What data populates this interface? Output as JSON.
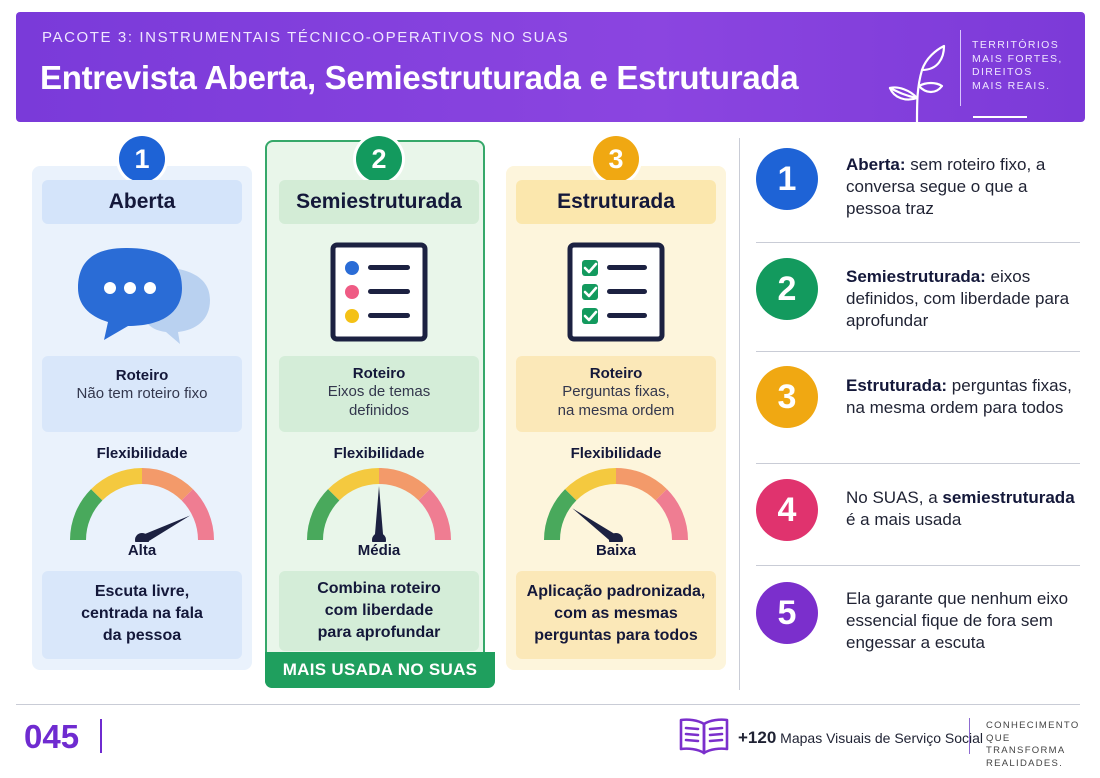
{
  "header": {
    "kicker": "PACOTE 3: INSTRUMENTAIS TÉCNICO-OPERATIVOS NO SUAS",
    "title": "Entrevista Aberta, Semiestruturada e Estruturada",
    "tagline": [
      "TERRITÓRIOS",
      "MAIS FORTES,",
      "DIREITOS",
      "MAIS REAIS."
    ],
    "logo_icon": "leaf-sprout-icon"
  },
  "columns": [
    {
      "number": "1",
      "title": "Aberta",
      "icon": "chat-bubbles-icon",
      "roteiro_label": "Roteiro",
      "roteiro_text": [
        "Não tem roteiro fixo"
      ],
      "flex_label": "Flexibilidade",
      "flex_value": "Alta",
      "flex_level": 0.85,
      "summary": [
        "Escuta livre,",
        "centrada na fala",
        "da pessoa"
      ],
      "color": "#1e63d6"
    },
    {
      "number": "2",
      "title": "Semiestruturada",
      "icon": "topic-list-icon",
      "roteiro_label": "Roteiro",
      "roteiro_text": [
        "Eixos de temas",
        "definidos"
      ],
      "flex_label": "Flexibilidade",
      "flex_value": "Média",
      "flex_level": 0.5,
      "summary": [
        "Combina roteiro",
        "com liberdade",
        "para aprofundar"
      ],
      "badge": "MAIS USADA NO SUAS",
      "color": "#139a5e"
    },
    {
      "number": "3",
      "title": "Estruturada",
      "icon": "checklist-icon",
      "roteiro_label": "Roteiro",
      "roteiro_text": [
        "Perguntas fixas,",
        "na mesma ordem"
      ],
      "flex_label": "Flexibilidade",
      "flex_value": "Baixa",
      "flex_level": 0.2,
      "summary": [
        "Aplicação padronizada,",
        "com as mesmas",
        "perguntas para todos"
      ],
      "color": "#f0a812"
    }
  ],
  "right_list": [
    {
      "number": "1",
      "bold": "Aberta:",
      "text": " sem roteiro fixo, a conversa segue o que a pessoa traz",
      "color": "#1e63d6"
    },
    {
      "number": "2",
      "bold": "Semiestruturada:",
      "text": " eixos definidos, com liberdade para aprofundar",
      "color": "#139a5e"
    },
    {
      "number": "3",
      "bold": "Estruturada:",
      "text": " perguntas fixas, na mesma ordem para todos",
      "color": "#f0a812"
    },
    {
      "number": "4",
      "pre": "No SUAS, a ",
      "bold": "semiestruturada",
      "text": " é a mais usada",
      "color": "#e0336e"
    },
    {
      "number": "5",
      "text": "Ela garante que nenhum eixo essencial fique de fora sem engessar a escuta",
      "color": "#7b2fcc"
    }
  ],
  "footer": {
    "page_number": "045",
    "brand_count": "+120",
    "brand_text": " Mapas Visuais de Serviço Social",
    "tagline": [
      "CONHECIMENTO",
      "QUE TRANSFORMA",
      "REALIDADES."
    ],
    "book_icon": "open-book-icon"
  }
}
